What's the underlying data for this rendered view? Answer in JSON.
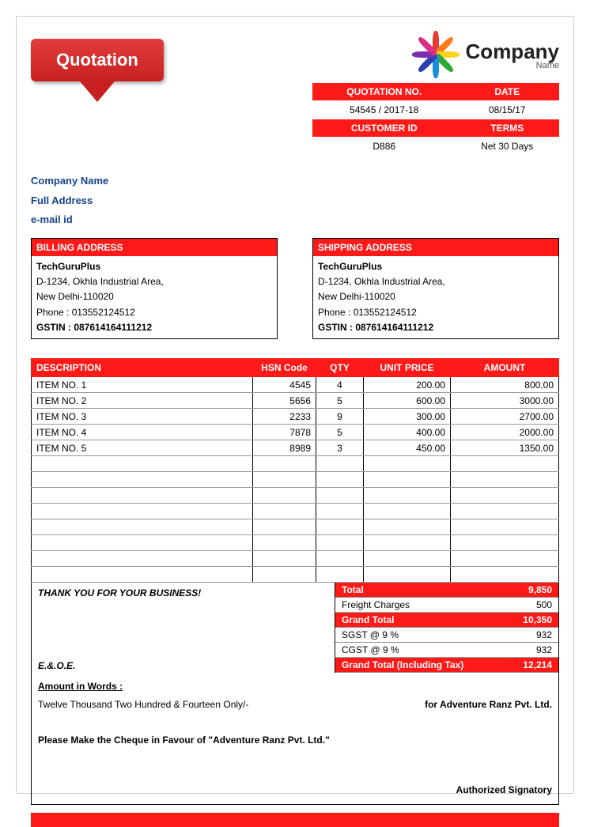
{
  "badge": "Quotation",
  "logo": {
    "company_word": "Company",
    "name_word": "Name",
    "colors": [
      "#e43c2f",
      "#ff7a1a",
      "#ffd21f",
      "#2fa836",
      "#1a8fd8",
      "#2a3fb0",
      "#7a2fb0",
      "#d82f87"
    ]
  },
  "meta": {
    "h1": "QUOTATION NO.",
    "h2": "DATE",
    "v1": "54545 / 2017-18",
    "v2": "08/15/17",
    "h3": "CUSTOMER ID",
    "h4": "TERMS",
    "v3": "D886",
    "v4": "Net 30 Days"
  },
  "company_info": {
    "l1": "Company Name",
    "l2": "Full Address",
    "l3": "e-mail id"
  },
  "billing": {
    "title": "BILLING ADDRESS",
    "name": "TechGuruPlus",
    "line1": "D-1234, Okhla Industrial Area,",
    "line2": "New Delhi-110020",
    "phone": "Phone : 013552124512",
    "gstin": "GSTIN : 087614164111212"
  },
  "shipping": {
    "title": "SHIPPING ADDRESS",
    "name": "TechGuruPlus",
    "line1": "D-1234, Okhla Industrial Area,",
    "line2": "New Delhi-110020",
    "phone": "Phone : 013552124512",
    "gstin": "GSTIN : 087614164111212"
  },
  "items": {
    "headers": {
      "desc": "DESCRIPTION",
      "hsn": "HSN Code",
      "qty": "QTY",
      "price": "UNIT PRICE",
      "amt": "AMOUNT"
    },
    "rows": [
      {
        "desc": "ITEM NO. 1",
        "hsn": "4545",
        "qty": "4",
        "price": "200.00",
        "amt": "800.00"
      },
      {
        "desc": "ITEM NO. 2",
        "hsn": "5656",
        "qty": "5",
        "price": "600.00",
        "amt": "3000.00"
      },
      {
        "desc": "ITEM NO. 3",
        "hsn": "2233",
        "qty": "9",
        "price": "300.00",
        "amt": "2700.00"
      },
      {
        "desc": "ITEM NO. 4",
        "hsn": "7878",
        "qty": "5",
        "price": "400.00",
        "amt": "2000.00"
      },
      {
        "desc": "ITEM NO. 5",
        "hsn": "8989",
        "qty": "3",
        "price": "450.00",
        "amt": "1350.00"
      }
    ],
    "blank_rows": 8
  },
  "thanks": "THANK YOU FOR YOUR BUSINESS!",
  "eoe": "E.&.O.E.",
  "totals": [
    {
      "label": "Total",
      "value": "9,850",
      "red": true
    },
    {
      "label": "Freight Charges",
      "value": "500",
      "red": false
    },
    {
      "label": "Grand Total",
      "value": "10,350",
      "red": true
    },
    {
      "label": "SGST @ 9 %",
      "value": "932",
      "red": false
    },
    {
      "label": "CGST @ 9 %",
      "value": "932",
      "red": false
    },
    {
      "label": "Grand Total (Including Tax)",
      "value": "12,214",
      "red": true
    }
  ],
  "footer": {
    "words_label": "Amount in Words :",
    "words": "Twelve Thousand Two Hundred & Fourteen Only/-",
    "for": "for Adventure Ranz Pvt. Ltd.",
    "cheque": "Please Make the Cheque in Favour of \"Adventure Ranz Pvt. Ltd.\"",
    "sig": "Authorized Signatory"
  },
  "colors": {
    "primary": "#ff1a1a",
    "header_blue": "#14428b"
  }
}
